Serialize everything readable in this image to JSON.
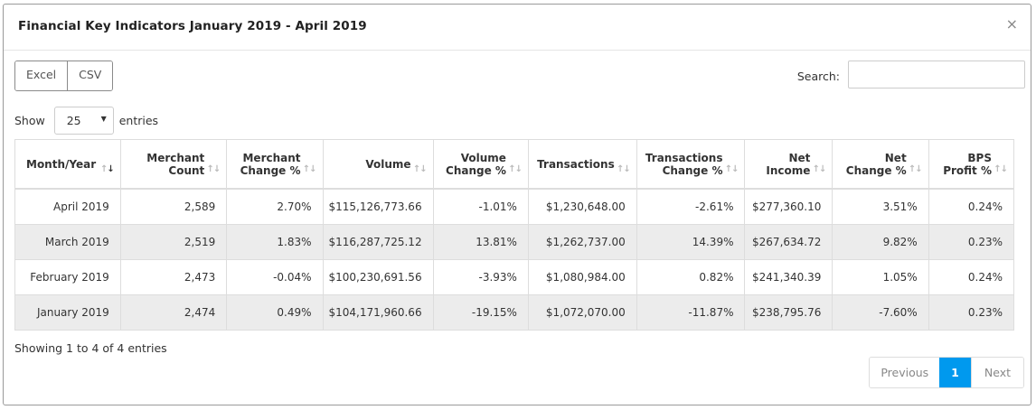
{
  "modal": {
    "title": "Financial Key Indicators January 2019 - April 2019",
    "close_symbol": "×"
  },
  "toolbar": {
    "excel_label": "Excel",
    "csv_label": "CSV"
  },
  "search": {
    "label": "Search:",
    "value": "",
    "placeholder": ""
  },
  "length": {
    "show_label": "Show",
    "selected": "25",
    "entries_label": "entries"
  },
  "table": {
    "columns": [
      {
        "line1": "",
        "line2": "Month/Year"
      },
      {
        "line1": "Merchant",
        "line2": "Count"
      },
      {
        "line1": "Merchant",
        "line2": "Change %"
      },
      {
        "line1": "",
        "line2": "Volume"
      },
      {
        "line1": "Volume",
        "line2": "Change %"
      },
      {
        "line1": "",
        "line2": "Transactions"
      },
      {
        "line1": "Transactions",
        "line2": "Change %"
      },
      {
        "line1": "Net",
        "line2": "Income"
      },
      {
        "line1": "Net",
        "line2": "Change %"
      },
      {
        "line1": "BPS",
        "line2": "Profit %"
      }
    ],
    "rows": [
      [
        "April 2019",
        "2,589",
        "2.70%",
        "$115,126,773.66",
        "-1.01%",
        "$1,230,648.00",
        "-2.61%",
        "$277,360.10",
        "3.51%",
        "0.24%"
      ],
      [
        "March 2019",
        "2,519",
        "1.83%",
        "$116,287,725.12",
        "13.81%",
        "$1,262,737.00",
        "14.39%",
        "$267,634.72",
        "9.82%",
        "0.23%"
      ],
      [
        "February 2019",
        "2,473",
        "-0.04%",
        "$100,230,691.56",
        "-3.93%",
        "$1,080,984.00",
        "0.82%",
        "$241,340.39",
        "1.05%",
        "0.24%"
      ],
      [
        "January 2019",
        "2,474",
        "0.49%",
        "$104,171,960.66",
        "-19.15%",
        "$1,072,070.00",
        "-11.87%",
        "$238,795.76",
        "-7.60%",
        "0.23%"
      ]
    ]
  },
  "info": "Showing 1 to 4 of 4 entries",
  "pagination": {
    "previous": "Previous",
    "current": "1",
    "next": "Next"
  },
  "colors": {
    "accent": "#0099ee",
    "stripe": "#ececec"
  }
}
